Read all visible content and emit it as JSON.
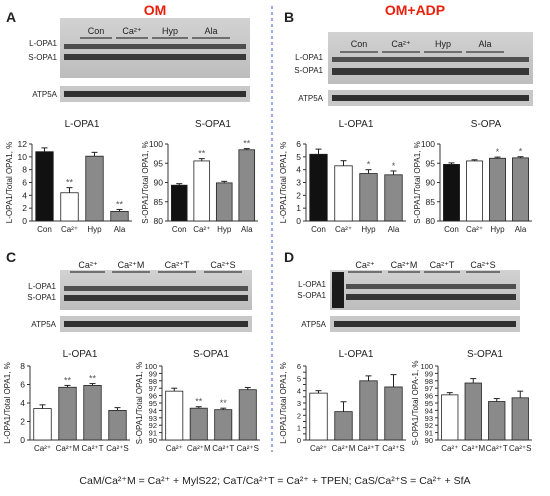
{
  "panels": {
    "A": {
      "letter": "A",
      "header": "OM",
      "lanes": [
        "Con",
        "Ca²⁺",
        "Hyp",
        "Ala"
      ],
      "band_top": "L-OPA1",
      "band_bottom": "S-OPA1",
      "loading": "ATP5A"
    },
    "B": {
      "letter": "B",
      "header": "OM+ADP",
      "lanes": [
        "Con",
        "Ca²⁺",
        "Hyp",
        "Ala"
      ],
      "band_top": "L-OPA1",
      "band_bottom": "S-OPA1",
      "loading": "ATP5A"
    },
    "C": {
      "letter": "C",
      "lanes": [
        "Ca²⁺",
        "Ca²⁺M",
        "Ca²⁺T",
        "Ca²⁺S"
      ],
      "band_top": "L-OPA1",
      "band_bottom": "S-OPA1",
      "loading": "ATP5A"
    },
    "D": {
      "letter": "D",
      "lanes": [
        "Ca²⁺",
        "Ca²⁺M",
        "Ca²⁺T",
        "Ca²⁺S"
      ],
      "band_top": "L-OPA1",
      "band_bottom": "S-OPA1",
      "loading": "ATP5A"
    }
  },
  "footnote": "CaM/Ca²⁺M = Ca²⁺ + MylS22;  CaT/Ca²⁺T = Ca²⁺ + TPEN;  CaS/Ca²⁺S = Ca²⁺ + SfA",
  "colors": {
    "header_red": "#e8200c",
    "divider_blue": "#3355dd",
    "bar_black": "#111111",
    "bar_white": "#ffffff",
    "bar_grey": "#8a8a8a"
  },
  "chart_data": [
    {
      "id": "A1",
      "type": "bar",
      "title": "L-OPA1",
      "ylabel": "L-OPA1/Total OPA1, %",
      "categories": [
        "Con",
        "Ca²⁺",
        "Hyp",
        "Ala"
      ],
      "values": [
        10.8,
        4.4,
        10.1,
        1.5
      ],
      "errors": [
        0.6,
        0.8,
        0.6,
        0.3
      ],
      "sig": [
        "",
        "**",
        "",
        "**"
      ],
      "fills": [
        "black",
        "white",
        "grey",
        "grey"
      ],
      "ylim": [
        0,
        12
      ],
      "yticks": [
        0,
        2,
        4,
        6,
        8,
        10,
        12
      ],
      "yticklabels": [
        "0",
        "2",
        "4",
        "6",
        "8",
        "10",
        "12"
      ]
    },
    {
      "id": "A2",
      "type": "bar",
      "title": "S-OPA1",
      "ylabel": "S-OPA1/Total OPA1, %",
      "categories": [
        "Con",
        "Ca²⁺",
        "Hyp",
        "Ala"
      ],
      "values": [
        89.3,
        95.6,
        89.9,
        98.5
      ],
      "errors": [
        0.4,
        0.6,
        0.4,
        0.3
      ],
      "sig": [
        "",
        "**",
        "",
        "**"
      ],
      "fills": [
        "black",
        "white",
        "grey",
        "grey"
      ],
      "ylim": [
        80,
        100
      ],
      "yticks": [
        80,
        85,
        90,
        95,
        100
      ],
      "yticklabels": [
        "80",
        "85",
        "90",
        "95",
        "100"
      ]
    },
    {
      "id": "B1",
      "type": "bar",
      "title": "L-OPA1",
      "ylabel": "L-OPA1/Total OPA1, %",
      "categories": [
        "Con",
        "Ca²⁺",
        "Hyp",
        "Ala"
      ],
      "values": [
        5.2,
        4.3,
        3.7,
        3.6
      ],
      "errors": [
        0.4,
        0.4,
        0.3,
        0.3
      ],
      "sig": [
        "",
        "",
        "*",
        "*"
      ],
      "fills": [
        "black",
        "white",
        "grey",
        "grey"
      ],
      "ylim": [
        0,
        6
      ],
      "yticks": [
        0,
        1,
        2,
        3,
        4,
        5,
        6
      ],
      "yticklabels": [
        "0",
        "1",
        "2",
        "3",
        "4",
        "5",
        "6"
      ]
    },
    {
      "id": "B2",
      "type": "bar",
      "title": "S-OPA",
      "ylabel": "S-OPA1/Total OPA1, %",
      "categories": [
        "Con",
        "Ca²⁺",
        "Hyp",
        "Ala"
      ],
      "values": [
        94.7,
        95.6,
        96.3,
        96.4
      ],
      "errors": [
        0.4,
        0.3,
        0.3,
        0.3
      ],
      "sig": [
        "",
        "",
        "*",
        "*"
      ],
      "fills": [
        "black",
        "white",
        "grey",
        "grey"
      ],
      "ylim": [
        80,
        100
      ],
      "yticks": [
        80,
        85,
        90,
        95,
        100
      ],
      "yticklabels": [
        "80",
        "85",
        "90",
        "95",
        "100"
      ]
    },
    {
      "id": "C1",
      "type": "bar",
      "title": "L-OPA1",
      "ylabel": "L-OPA1/Total OPA1, %",
      "categories": [
        "Ca²⁺",
        "Ca²⁺M",
        "Ca²⁺T",
        "Ca²⁺S"
      ],
      "values": [
        3.4,
        5.7,
        5.9,
        3.2
      ],
      "errors": [
        0.4,
        0.2,
        0.2,
        0.3
      ],
      "sig": [
        "",
        "**",
        "**",
        ""
      ],
      "fills": [
        "white",
        "grey",
        "grey",
        "grey"
      ],
      "ylim": [
        0,
        8
      ],
      "yticks": [
        0,
        2,
        4,
        6,
        8
      ],
      "yticklabels": [
        "0",
        "2",
        "4",
        "6",
        "8"
      ]
    },
    {
      "id": "C2",
      "type": "bar",
      "title": "S-OPA1",
      "ylabel": "S-OPA1/Total OPA1, %",
      "categories": [
        "Ca²⁺",
        "Ca²⁺M",
        "Ca²⁺T",
        "Ca²⁺S"
      ],
      "values": [
        96.6,
        94.3,
        94.1,
        96.8
      ],
      "errors": [
        0.4,
        0.2,
        0.2,
        0.3
      ],
      "sig": [
        "",
        "**",
        "**",
        ""
      ],
      "fills": [
        "white",
        "grey",
        "grey",
        "grey"
      ],
      "ylim": [
        90,
        100
      ],
      "yticks": [
        90,
        91,
        92,
        93,
        94,
        95,
        96,
        97,
        98,
        99,
        100
      ],
      "yticklabels": [
        "90",
        "91",
        "92",
        "93",
        "94",
        "95",
        "96",
        "97",
        "98",
        "99",
        "100"
      ]
    },
    {
      "id": "D1",
      "type": "bar",
      "title": "L-OPA1",
      "ylabel": "L-OPA1/Total OPA1, %",
      "categories": [
        "Ca²⁺",
        "Ca²⁺M",
        "Ca²⁺T",
        "Ca²⁺S"
      ],
      "values": [
        3.8,
        2.3,
        4.8,
        4.3
      ],
      "errors": [
        0.2,
        0.8,
        0.4,
        1.0
      ],
      "sig": [
        "",
        "",
        "",
        ""
      ],
      "fills": [
        "white",
        "grey",
        "grey",
        "grey"
      ],
      "ylim": [
        0,
        6
      ],
      "yticks": [
        0,
        0.5,
        1,
        1.5,
        2,
        2.5,
        3,
        3.5,
        4,
        4.5,
        5,
        5.5,
        6
      ],
      "yticklabels": [
        "0",
        "",
        "1",
        "",
        "2",
        "",
        "3",
        "",
        "4",
        "",
        "5",
        "",
        "6"
      ]
    },
    {
      "id": "D2",
      "type": "bar",
      "title": "S-OPA1",
      "ylabel": "S-OPA1/Total OPA-1, %",
      "categories": [
        "Ca²⁺",
        "Ca²⁺M",
        "Ca²⁺T",
        "Ca²⁺S"
      ],
      "values": [
        96.1,
        97.7,
        95.2,
        95.7
      ],
      "errors": [
        0.3,
        0.6,
        0.4,
        0.9
      ],
      "sig": [
        "",
        "",
        "",
        ""
      ],
      "fills": [
        "white",
        "grey",
        "grey",
        "grey"
      ],
      "ylim": [
        90,
        100
      ],
      "yticks": [
        90,
        91,
        92,
        93,
        94,
        95,
        96,
        97,
        98,
        99,
        100
      ],
      "yticklabels": [
        "90",
        "91",
        "92",
        "93",
        "94",
        "95",
        "96",
        "97",
        "98",
        "99",
        "100"
      ]
    }
  ]
}
